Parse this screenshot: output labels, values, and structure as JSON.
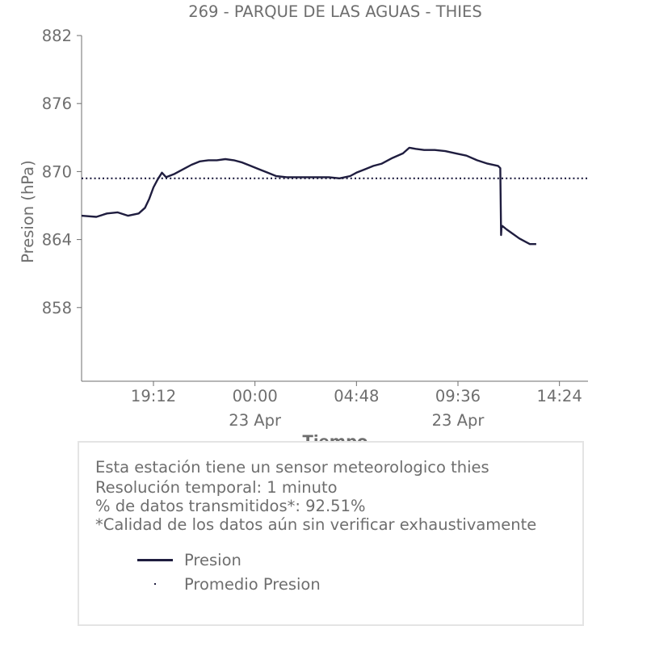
{
  "chart_data": {
    "type": "line",
    "title": "269 - PARQUE DE LAS AGUAS - THIES",
    "xlabel": "Tiempo",
    "ylabel": "Presion (hPa)",
    "ylim": [
      851.5,
      882
    ],
    "xlim": [
      -8.2,
      15.75
    ],
    "x_units": "hours relative to 00:00 23 Apr",
    "yticks": [
      {
        "value": 882,
        "label": "882"
      },
      {
        "value": 876,
        "label": "876"
      },
      {
        "value": 870,
        "label": "870"
      },
      {
        "value": 864,
        "label": "864"
      },
      {
        "value": 858,
        "label": "858"
      }
    ],
    "xticks": [
      {
        "value": -4.8,
        "label": "19:12",
        "sublabel": ""
      },
      {
        "value": 0,
        "label": "00:00",
        "sublabel": "23 Apr"
      },
      {
        "value": 4.8,
        "label": "04:48",
        "sublabel": ""
      },
      {
        "value": 9.6,
        "label": "09:36",
        "sublabel": "23 Apr"
      },
      {
        "value": 14.4,
        "label": "14:24",
        "sublabel": ""
      }
    ],
    "grid": false,
    "series": [
      {
        "name": "Presion",
        "style": "solid",
        "color": "#1f1d3f",
        "x": [
          -8.2,
          -7.5,
          -7.0,
          -6.5,
          -6.0,
          -5.5,
          -5.2,
          -5.0,
          -4.8,
          -4.6,
          -4.4,
          -4.2,
          -3.8,
          -3.4,
          -3.0,
          -2.6,
          -2.2,
          -1.8,
          -1.4,
          -1.0,
          -0.6,
          -0.2,
          0.2,
          0.6,
          1.0,
          1.5,
          2.0,
          2.5,
          3.0,
          3.5,
          4.0,
          4.5,
          4.8,
          5.2,
          5.6,
          6.0,
          6.5,
          7.0,
          7.3,
          7.6,
          8.0,
          8.5,
          9.0,
          9.5,
          10.0,
          10.5,
          11.0,
          11.5,
          11.6,
          11.64,
          11.66,
          11.7,
          11.9,
          12.2,
          12.5,
          12.8,
          13.0,
          13.3
        ],
        "y": [
          866.1,
          866.0,
          866.3,
          866.4,
          866.1,
          866.3,
          866.8,
          867.6,
          868.6,
          869.3,
          869.9,
          869.5,
          869.8,
          870.2,
          870.6,
          870.9,
          871.0,
          871.0,
          871.1,
          871.0,
          870.8,
          870.5,
          870.2,
          869.9,
          869.6,
          869.5,
          869.5,
          869.5,
          869.5,
          869.5,
          869.4,
          869.6,
          869.9,
          870.2,
          870.5,
          870.7,
          871.2,
          871.6,
          872.1,
          872.0,
          871.9,
          871.9,
          871.8,
          871.6,
          871.4,
          871.0,
          870.7,
          870.5,
          870.3,
          864.4,
          865.1,
          865.2,
          864.9,
          864.5,
          864.1,
          863.8,
          863.6,
          863.6
        ]
      },
      {
        "name": "Promedio Presion",
        "style": "dotted",
        "color": "#1f1d3f",
        "x": [
          -8.2,
          15.75
        ],
        "y": [
          869.4,
          869.4
        ]
      }
    ]
  },
  "info": {
    "line1": "Esta estación tiene un sensor meteorologico thies",
    "line2": "Resolución temporal: 1 minuto",
    "line3": "% de datos transmitidos*: 92.51%",
    "line4": "*Calidad de los datos aún sin verificar exhaustivamente"
  },
  "legend": {
    "item1": "Presion",
    "item2": "Promedio Presion"
  },
  "colors": {
    "series": "#1f1d3f",
    "text": "#6e6e6e",
    "axis": "#6e6e6e",
    "box_border": "#e4e4e4"
  }
}
